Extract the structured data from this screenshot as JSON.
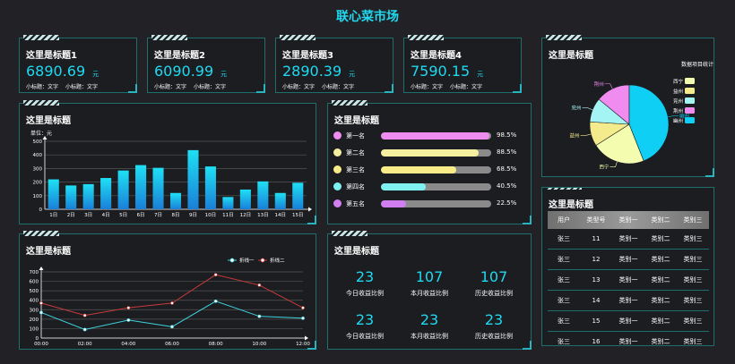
{
  "page": {
    "title": "联心菜市场"
  },
  "kpis": [
    {
      "title": "这里是标题1",
      "value": "6890.69",
      "unit": "元",
      "sub1": "小标题：文字",
      "sub2": "小标题：文字"
    },
    {
      "title": "这里是标题2",
      "value": "6090.99",
      "unit": "元",
      "sub1": "小标题：文字",
      "sub2": "小标题：文字"
    },
    {
      "title": "这里是标题3",
      "value": "2890.39",
      "unit": "元",
      "sub1": "小标题：文字",
      "sub2": "小标题：文字"
    },
    {
      "title": "这里是标题4",
      "value": "7590.15",
      "unit": "元",
      "sub1": "小标题：文字",
      "sub2": "小标题：文字"
    }
  ],
  "pie_panel": {
    "title": "这里是标题"
  },
  "bar_panel": {
    "title": "这里是标题"
  },
  "rank_panel": {
    "title": "这里是标题",
    "items": [
      {
        "name": "第一名",
        "pct": "98.5%",
        "value": 98.5,
        "color": "#f08cf0"
      },
      {
        "name": "第二名",
        "pct": "88.5%",
        "value": 88.5,
        "color": "#f4f0a0"
      },
      {
        "name": "第三名",
        "pct": "68.5%",
        "value": 68.5,
        "color": "#f8ec88"
      },
      {
        "name": "第四名",
        "pct": "40.5%",
        "value": 40.5,
        "color": "#7ff0f0"
      },
      {
        "name": "第五名",
        "pct": "22.5%",
        "value": 22.5,
        "color": "#d07ef0"
      }
    ]
  },
  "line_panel": {
    "title": "这里是标题"
  },
  "stats_panel": {
    "title": "这里是标题",
    "items": [
      {
        "num": "23",
        "label": "今日收益比例"
      },
      {
        "num": "107",
        "label": "本月收益比例"
      },
      {
        "num": "107",
        "label": "历史收益比例"
      },
      {
        "num": "23",
        "label": "今日收益比例"
      },
      {
        "num": "23",
        "label": "本月收益比例"
      },
      {
        "num": "23",
        "label": "历史收益比例"
      }
    ]
  },
  "table_panel": {
    "title": "这里是标题",
    "headers": [
      "用户",
      "类型号",
      "类别一",
      "类别二",
      "类别三"
    ],
    "rows": [
      [
        "张三",
        "11",
        "类别一",
        "类别二",
        "类别三"
      ],
      [
        "张三",
        "12",
        "类别一",
        "类别二",
        "类别三"
      ],
      [
        "张三",
        "13",
        "类别一",
        "类别二",
        "类别三"
      ],
      [
        "张三",
        "14",
        "类别一",
        "类别二",
        "类别三"
      ],
      [
        "张三",
        "15",
        "类别一",
        "类别二",
        "类别三"
      ],
      [
        "张三",
        "16",
        "类别一",
        "类别二",
        "类别三"
      ]
    ]
  },
  "colors": {
    "accent": "#20d8f0",
    "border": "#1f6e6e",
    "background": "#222226"
  },
  "chart_data": [
    {
      "type": "bar",
      "ylabel": "单位：元",
      "categories": [
        "1日",
        "2日",
        "3日",
        "4日",
        "5日",
        "6日",
        "7日",
        "8日",
        "9日",
        "10日",
        "11日",
        "12日",
        "13日",
        "14日",
        "15日"
      ],
      "values": [
        220,
        175,
        185,
        230,
        285,
        325,
        305,
        120,
        435,
        315,
        90,
        145,
        205,
        120,
        195
      ],
      "ylim": [
        0,
        500
      ],
      "yticks": [
        0,
        100,
        200,
        300,
        400,
        500
      ],
      "grid": true
    },
    {
      "type": "line",
      "x": [
        "00:00",
        "02:00",
        "04:00",
        "06:00",
        "08:00",
        "10:00",
        "12:00"
      ],
      "ylim": [
        0,
        700
      ],
      "yticks": [
        0,
        100,
        200,
        300,
        400,
        500,
        600,
        700
      ],
      "series": [
        {
          "name": "折线一",
          "color": "#3fd4e0",
          "values": [
            270,
            90,
            190,
            120,
            390,
            230,
            210
          ]
        },
        {
          "name": "折线二",
          "color": "#c83a3a",
          "values": [
            370,
            240,
            320,
            370,
            670,
            560,
            320
          ]
        }
      ],
      "legend": "top-right",
      "grid": true
    },
    {
      "type": "pie",
      "legend_title": "数据项目统计",
      "slices": [
        {
          "label": "西宁",
          "value": 22,
          "color": "#f4fcb0"
        },
        {
          "label": "益州",
          "value": 10,
          "color": "#f4ec8c"
        },
        {
          "label": "兖州",
          "value": 10,
          "color": "#a4f4f4"
        },
        {
          "label": "荆州",
          "value": 14,
          "color": "#f08cf0"
        },
        {
          "label": "幽州",
          "value": 44,
          "color": "#10cff4"
        }
      ],
      "legend": "right"
    }
  ]
}
